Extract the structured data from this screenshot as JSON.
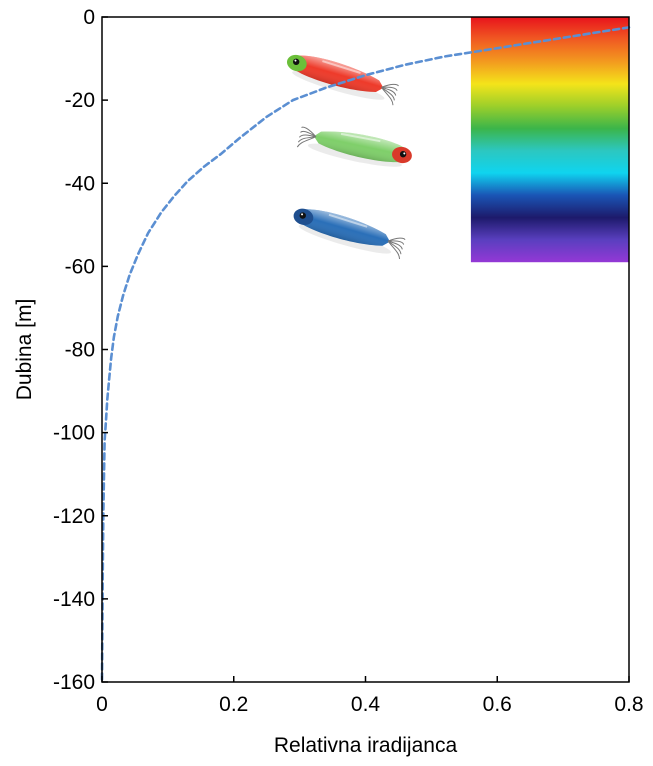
{
  "chart_data": {
    "type": "line",
    "xlabel": "Relativna iradijanca",
    "ylabel": "Dubina [m]",
    "xlim": [
      0,
      0.8
    ],
    "ylim": [
      -160,
      0
    ],
    "x_ticks": [
      "0",
      "0.2",
      "0.4",
      "0.6",
      "0.8"
    ],
    "y_ticks": [
      "0",
      "-20",
      "-40",
      "-60",
      "-80",
      "-100",
      "-120",
      "-140",
      "-160"
    ],
    "grid": false,
    "legend": "none",
    "series": [
      {
        "style": "dashed",
        "color": "#5b8fd2",
        "points": [
          [
            0.8,
            -2.5
          ],
          [
            0.76,
            -3.5
          ],
          [
            0.7,
            -5
          ],
          [
            0.64,
            -6.5
          ],
          [
            0.58,
            -8
          ],
          [
            0.52,
            -9.5
          ],
          [
            0.46,
            -11.5
          ],
          [
            0.4,
            -14
          ],
          [
            0.34,
            -17
          ],
          [
            0.29,
            -20
          ],
          [
            0.25,
            -24
          ],
          [
            0.21,
            -29
          ],
          [
            0.18,
            -33
          ],
          [
            0.155,
            -36
          ],
          [
            0.13,
            -39.5
          ],
          [
            0.11,
            -43
          ],
          [
            0.09,
            -47
          ],
          [
            0.07,
            -52
          ],
          [
            0.055,
            -57
          ],
          [
            0.042,
            -62
          ],
          [
            0.032,
            -67
          ],
          [
            0.024,
            -72
          ],
          [
            0.018,
            -77
          ],
          [
            0.014,
            -82
          ],
          [
            0.011,
            -87
          ],
          [
            0.008,
            -92
          ],
          [
            0.006,
            -97
          ],
          [
            0.004,
            -102
          ],
          [
            0.003,
            -110
          ],
          [
            0.002,
            -120
          ],
          [
            0.001,
            -135
          ],
          [
            0.0005,
            -150
          ],
          [
            0.0,
            -160
          ]
        ]
      }
    ],
    "spectrum_band": {
      "x_range": [
        0.56,
        0.8
      ],
      "depth_range": [
        0,
        -59
      ],
      "colors": [
        "#e8131c",
        "#f05a22",
        "#f39a1f",
        "#f4e41a",
        "#9ccf2a",
        "#3bb54a",
        "#2cc7c0",
        "#0fd4ef",
        "#1a55b5",
        "#1d1a6b",
        "#5a3fbf",
        "#9438d6"
      ]
    },
    "lures": [
      {
        "name": "red-lure",
        "body_color": "#ee3a2a",
        "head_color": "#6bbf3a",
        "x": 0.36,
        "depth": -14
      },
      {
        "name": "green-lure",
        "body_color": "#7fcf6a",
        "head_color": "#d93a2a",
        "x": 0.39,
        "depth": -31
      },
      {
        "name": "blue-lure",
        "body_color": "#2a6fb8",
        "head_color": "#1f4f8f",
        "x": 0.37,
        "depth": -51
      }
    ]
  }
}
